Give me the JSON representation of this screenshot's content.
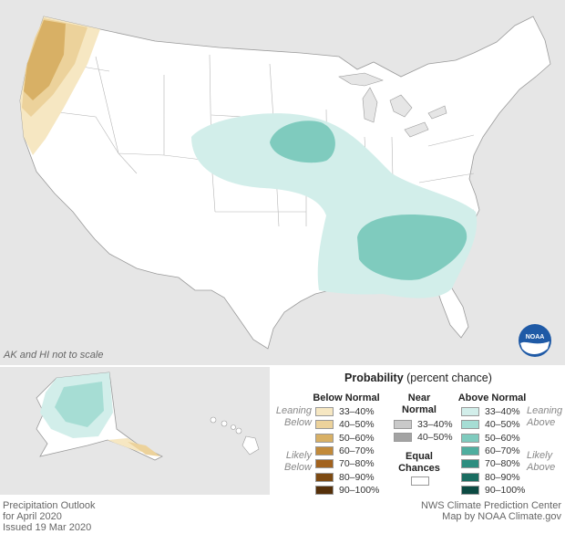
{
  "note": "AK and HI not to scale",
  "footer": {
    "title": "Precipitation Outlook",
    "period": "for April 2020",
    "issued": "Issued 19 Mar 2020",
    "credit1": "NWS Climate Prediction Center",
    "credit2": "Map by NOAA Climate.gov"
  },
  "logo_text": "NOAA",
  "legend": {
    "title_bold": "Probability",
    "title_rest": "(percent chance)",
    "below_head": "Below Normal",
    "near_head_1": "Near",
    "near_head_2": "Normal",
    "above_head": "Above Normal",
    "leaning_below_1": "Leaning",
    "leaning_below_2": "Below",
    "likely_below_1": "Likely",
    "likely_below_2": "Below",
    "leaning_above_1": "Leaning",
    "leaning_above_2": "Above",
    "likely_above_1": "Likely",
    "likely_above_2": "Above",
    "equal_1": "Equal",
    "equal_2": "Chances",
    "below": [
      {
        "label": "33–40%",
        "color": "#f6e7c2"
      },
      {
        "label": "40–50%",
        "color": "#ecd29b"
      },
      {
        "label": "50–60%",
        "color": "#d8b065"
      },
      {
        "label": "60–70%",
        "color": "#c28a3a"
      },
      {
        "label": "70–80%",
        "color": "#a3631e"
      },
      {
        "label": "80–90%",
        "color": "#7d4a12"
      },
      {
        "label": "90–100%",
        "color": "#55300a"
      }
    ],
    "near": [
      {
        "label": "33–40%",
        "color": "#c9c9c9"
      },
      {
        "label": "40–50%",
        "color": "#a3a3a3"
      }
    ],
    "above": [
      {
        "label": "33–40%",
        "color": "#d2eeea"
      },
      {
        "label": "40–50%",
        "color": "#a6ddd4"
      },
      {
        "label": "50–60%",
        "color": "#7fcbbe"
      },
      {
        "label": "60–70%",
        "color": "#4fae9f"
      },
      {
        "label": "70–80%",
        "color": "#2d8e80"
      },
      {
        "label": "80–90%",
        "color": "#1a6d61"
      },
      {
        "label": "90–100%",
        "color": "#0c4a42"
      }
    ]
  }
}
